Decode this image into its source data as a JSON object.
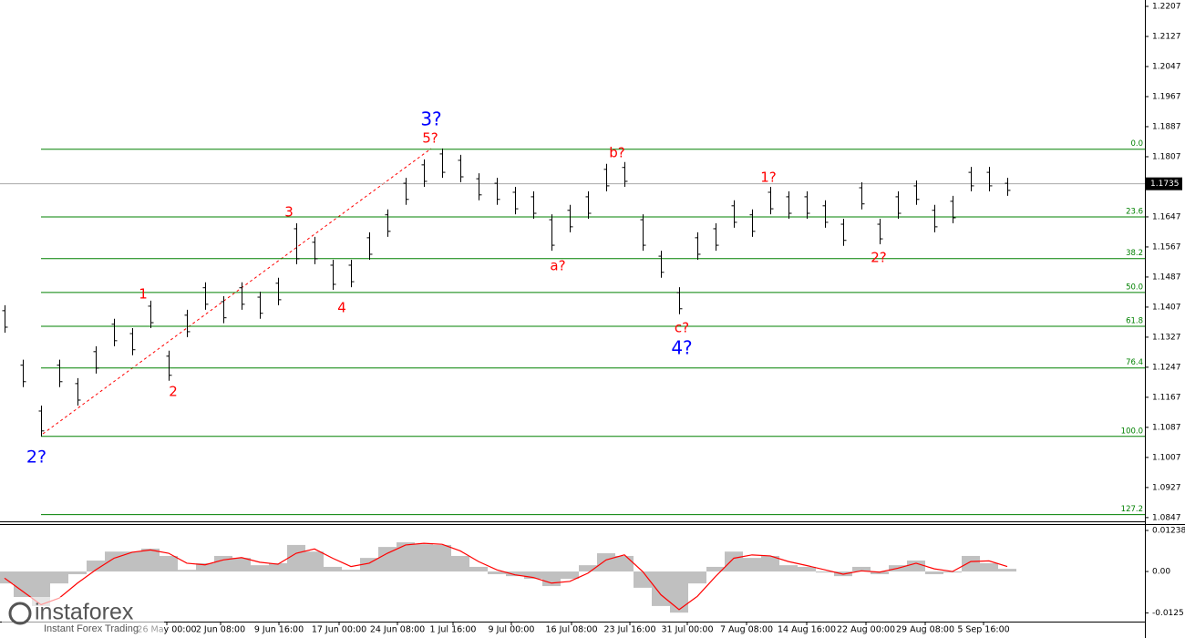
{
  "chart_data": [
    {
      "type": "ohlc",
      "x": [
        0,
        1,
        2,
        3,
        4,
        5,
        6,
        7,
        8,
        9,
        10,
        11,
        12,
        13,
        14,
        15,
        16,
        17,
        18,
        19,
        20,
        21,
        22,
        23,
        24,
        25,
        26,
        27,
        28,
        29,
        30,
        31,
        32,
        33,
        34,
        35,
        36,
        37,
        38,
        39,
        40,
        41,
        42,
        43,
        44,
        45,
        46,
        47,
        48,
        49,
        50,
        51,
        52,
        53,
        54,
        55
      ],
      "high": [
        1.1412,
        1.1267,
        1.1145,
        1.1267,
        1.1218,
        1.1303,
        1.1376,
        1.1351,
        1.1424,
        1.1291,
        1.14,
        1.1473,
        1.1436,
        1.1473,
        1.1448,
        1.1485,
        1.163,
        1.1594,
        1.1533,
        1.1533,
        1.1606,
        1.1667,
        1.1751,
        1.18,
        1.1829,
        1.1812,
        1.1763,
        1.1751,
        1.1727,
        1.1715,
        1.1654,
        1.1679,
        1.1715,
        1.1788,
        1.1793,
        1.1654,
        1.1557,
        1.146,
        1.1606,
        1.163,
        1.1691,
        1.1667,
        1.1727,
        1.1715,
        1.1715,
        1.1691,
        1.1642,
        1.1739,
        1.1642,
        1.1715,
        1.1744,
        1.1679,
        1.1703,
        1.178,
        1.178,
        1.1751
      ],
      "low": [
        1.1339,
        1.1194,
        1.1063,
        1.1194,
        1.1145,
        1.123,
        1.1303,
        1.1279,
        1.1351,
        1.1211,
        1.1327,
        1.14,
        1.1364,
        1.14,
        1.1376,
        1.1412,
        1.1521,
        1.1521,
        1.1453,
        1.146,
        1.1533,
        1.1594,
        1.1679,
        1.1727,
        1.1751,
        1.1739,
        1.1691,
        1.1679,
        1.1654,
        1.1642,
        1.1557,
        1.1606,
        1.1642,
        1.1715,
        1.1727,
        1.1557,
        1.1485,
        1.1388,
        1.1533,
        1.1557,
        1.1618,
        1.1594,
        1.1654,
        1.1642,
        1.1642,
        1.1618,
        1.157,
        1.1667,
        1.1574,
        1.1642,
        1.1679,
        1.1606,
        1.163,
        1.1715,
        1.1715,
        1.1703
      ],
      "color": "#000000",
      "xlim": [
        -0.25,
        62.25
      ],
      "xticks": [
        {
          "value": 8.9,
          "label": "26 May 00:00"
        },
        {
          "value": 11.85,
          "label": "2 Jun 08:00"
        },
        {
          "value": 15.05,
          "label": "9 Jun 16:00"
        },
        {
          "value": 18.35,
          "label": "17 Jun 00:00"
        },
        {
          "value": 21.55,
          "label": "24 Jun 08:00"
        },
        {
          "value": 24.6,
          "label": "1 Jul 16:00"
        },
        {
          "value": 27.8,
          "label": "9 Jul 00:00"
        },
        {
          "value": 31.1,
          "label": "16 Jul 08:00"
        },
        {
          "value": 34.3,
          "label": "23 Jul 16:00"
        },
        {
          "value": 37.45,
          "label": "31 Jul 00:00"
        },
        {
          "value": 40.7,
          "label": "7 Aug 08:00"
        },
        {
          "value": 44,
          "label": "14 Aug 16:00"
        },
        {
          "value": 47.25,
          "label": "22 Aug 00:00"
        },
        {
          "value": 50.5,
          "label": "29 Aug 08:00"
        },
        {
          "value": 53.7,
          "label": "5 Sep 16:00"
        }
      ],
      "ylim": [
        1.0837,
        1.2224
      ],
      "yticks": [
        1.2207,
        1.2127,
        1.2047,
        1.1967,
        1.1887,
        1.1807,
        1.1727,
        1.1647,
        1.1567,
        1.1487,
        1.1407,
        1.1327,
        1.1247,
        1.1167,
        1.1087,
        1.1007,
        1.0927,
        1.0847
      ],
      "current_price": 1.1735,
      "fib_color": "#008000",
      "fib_levels": [
        {
          "label": "0.0",
          "price": 1.1827
        },
        {
          "label": "23.6",
          "price": 1.1647
        },
        {
          "label": "38.2",
          "price": 1.1536
        },
        {
          "label": "50.0",
          "price": 1.1446
        },
        {
          "label": "61.8",
          "price": 1.1356
        },
        {
          "label": "76.4",
          "price": 1.1245
        },
        {
          "label": "100.0",
          "price": 1.1063
        },
        {
          "label": "127.2",
          "price": 1.0855
        }
      ],
      "annotations": [
        {
          "text": "2?",
          "color": "#0000ff"
        },
        {
          "text": "1",
          "color": "#ff0000"
        },
        {
          "text": "2",
          "color": "#ff0000"
        },
        {
          "text": "3",
          "color": "#ff0000"
        },
        {
          "text": "4",
          "color": "#ff0000"
        },
        {
          "text": "5?",
          "color": "#ff0000"
        },
        {
          "text": "3?",
          "color": "#0000ff"
        },
        {
          "text": "a?",
          "color": "#ff0000"
        },
        {
          "text": "b?",
          "color": "#ff0000"
        },
        {
          "text": "c?",
          "color": "#ff0000"
        },
        {
          "text": "4?",
          "color": "#0000ff"
        },
        {
          "text": "1?",
          "color": "#ff0000"
        },
        {
          "text": "2?",
          "color": "#ff0000"
        }
      ]
    },
    {
      "type": "macd",
      "series": [
        {
          "color": "#c0c0c0",
          "values": [
            -0.0036,
            -0.0077,
            -0.0104,
            -0.0036,
            -0.0008,
            0.0033,
            0.006,
            0.006,
            0.0069,
            0.0047,
            0.0005,
            0.0025,
            0.0047,
            0.0041,
            0.0019,
            0.0025,
            0.008,
            0.006,
            0.0014,
            0.0005,
            0.0041,
            0.0074,
            0.0088,
            0.0082,
            0.008,
            0.0047,
            0.0014,
            -0.0008,
            -0.0014,
            -0.0022,
            -0.0044,
            -0.0022,
            0.0019,
            0.0055,
            0.0047,
            -0.0049,
            -0.0104,
            -0.0124,
            -0.0036,
            0.0014,
            0.006,
            0.0041,
            0.0047,
            0.0019,
            0.0014,
            -0.0003,
            -0.0014,
            0.0014,
            -0.0008,
            0.0019,
            0.0033,
            -0.0008,
            -0.0003,
            0.0047,
            0.0025,
            0.0008
          ]
        },
        {
          "color": "#ff0000",
          "values": [
            -0.002,
            -0.006,
            -0.01,
            -0.008,
            -0.0035,
            0.0005,
            0.004,
            0.0058,
            0.0065,
            0.0055,
            0.0025,
            0.002,
            0.0035,
            0.0042,
            0.0028,
            0.0022,
            0.0055,
            0.0068,
            0.004,
            0.0015,
            0.0025,
            0.0055,
            0.008,
            0.0085,
            0.0082,
            0.0062,
            0.003,
            0.0005,
            -0.001,
            -0.0018,
            -0.0035,
            -0.003,
            -0.0005,
            0.0035,
            0.005,
            0.0,
            -0.007,
            -0.0115,
            -0.0075,
            -0.0015,
            0.004,
            0.005,
            0.0047,
            0.003,
            0.0018,
            0.0005,
            -0.0008,
            0.0002,
            -0.0002,
            0.001,
            0.0025,
            0.0008,
            0.0,
            0.003,
            0.0032,
            0.0015
          ]
        }
      ],
      "ylim": [
        -0.0151,
        0.0143
      ],
      "yticks": [
        0.01238,
        {
          "value": 0,
          "label": "0.00"
        },
        -0.0125
      ]
    }
  ],
  "watermark": {
    "brand": "instaforex",
    "tagline": "Instant Forex Trading"
  }
}
